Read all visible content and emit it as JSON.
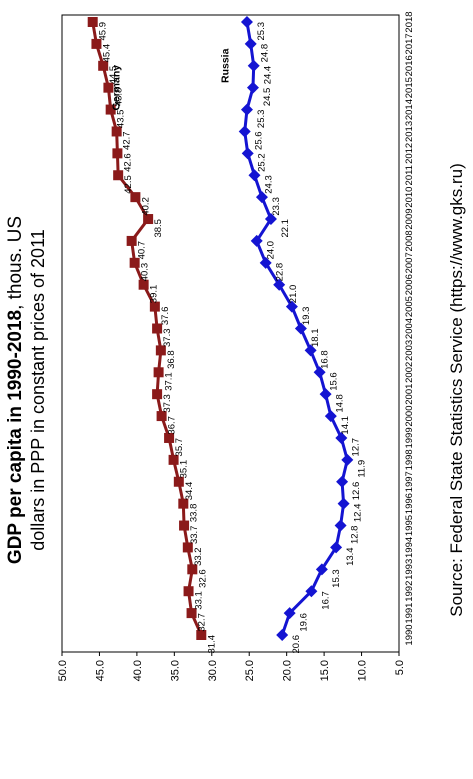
{
  "title": {
    "bold": "GDP per capita in 1990-2018",
    "rest": ", thous. US",
    "line2": "dollars in PPP in constant prices of 2011"
  },
  "source": "Source: Federal State Statistics Service (https://www.gks.ru)",
  "chart_data": {
    "type": "line",
    "orientation": "rotated 90° counter-clockwise",
    "x": [
      1990,
      1991,
      1992,
      1993,
      1994,
      1995,
      1996,
      1997,
      1998,
      1999,
      2000,
      2001,
      2002,
      2003,
      2004,
      2005,
      2006,
      2007,
      2008,
      2009,
      2010,
      2011,
      2012,
      2013,
      2014,
      2015,
      2016,
      2017,
      2018
    ],
    "x_tick_labels": [
      "1990",
      "1991",
      "1992",
      "1993",
      "1994",
      "1995",
      "1996",
      "1997",
      "1998",
      "1999",
      "2000",
      "2001",
      "2002",
      "2003",
      "2004",
      "2005",
      "2006",
      "2007",
      "2008",
      "2009",
      "2010",
      "2011",
      "2012",
      "2013",
      "2014",
      "2015",
      "2016",
      "2017",
      "2018"
    ],
    "ylim": [
      5,
      50
    ],
    "y_ticks": [
      "5.0",
      "10.0",
      "15.0",
      "20.0",
      "25.0",
      "30.0",
      "35.0",
      "40.0",
      "45.0",
      "50.0"
    ],
    "series": [
      {
        "name": "Germany",
        "color": "#8b1a1a",
        "marker": "square",
        "values": [
          31.4,
          32.7,
          33.1,
          32.6,
          33.2,
          33.7,
          33.8,
          34.4,
          35.1,
          35.7,
          36.7,
          37.3,
          37.1,
          36.8,
          37.3,
          37.6,
          39.1,
          40.3,
          40.7,
          38.5,
          40.2,
          42.5,
          42.6,
          42.7,
          43.5,
          43.8,
          44.5,
          45.4,
          45.9
        ],
        "labels": [
          "31.4",
          "32.7",
          "33.1",
          "32.6",
          "33.2",
          "33.7",
          "33.8",
          "34.4",
          "35.1",
          "35.7",
          "36.7",
          "37.3",
          "37.1",
          "36.8",
          "37.3",
          "37.6",
          "39.1",
          "40.3",
          "40.7",
          "38.5",
          "40.2",
          "42.5",
          "42.6",
          "42.7",
          "43.5",
          "43.8",
          "44.5",
          "45.4",
          "45.9"
        ]
      },
      {
        "name": "Russia",
        "color": "#1414d2",
        "marker": "diamond",
        "values": [
          20.6,
          19.6,
          16.7,
          15.3,
          13.4,
          12.8,
          12.4,
          12.6,
          11.9,
          12.7,
          14.1,
          14.8,
          15.6,
          16.8,
          18.1,
          19.3,
          21.0,
          22.8,
          24.0,
          22.1,
          23.3,
          24.3,
          25.2,
          25.6,
          25.3,
          24.5,
          24.4,
          24.8,
          25.3
        ],
        "labels": [
          "20.6",
          "19.6",
          "16.7",
          "15.3",
          "13.4",
          "12.8",
          "12.4",
          "12.6",
          "11.9",
          "12.7",
          "14.1",
          "14.8",
          "15.6",
          "16.8",
          "18.1",
          "19.3",
          "21.0",
          "22.8",
          "24.0",
          "22.1",
          "23.3",
          "24.3",
          "25.2",
          "25.6",
          "25.3",
          "24.5",
          "24.4",
          "24.8",
          "25.3"
        ]
      }
    ]
  }
}
